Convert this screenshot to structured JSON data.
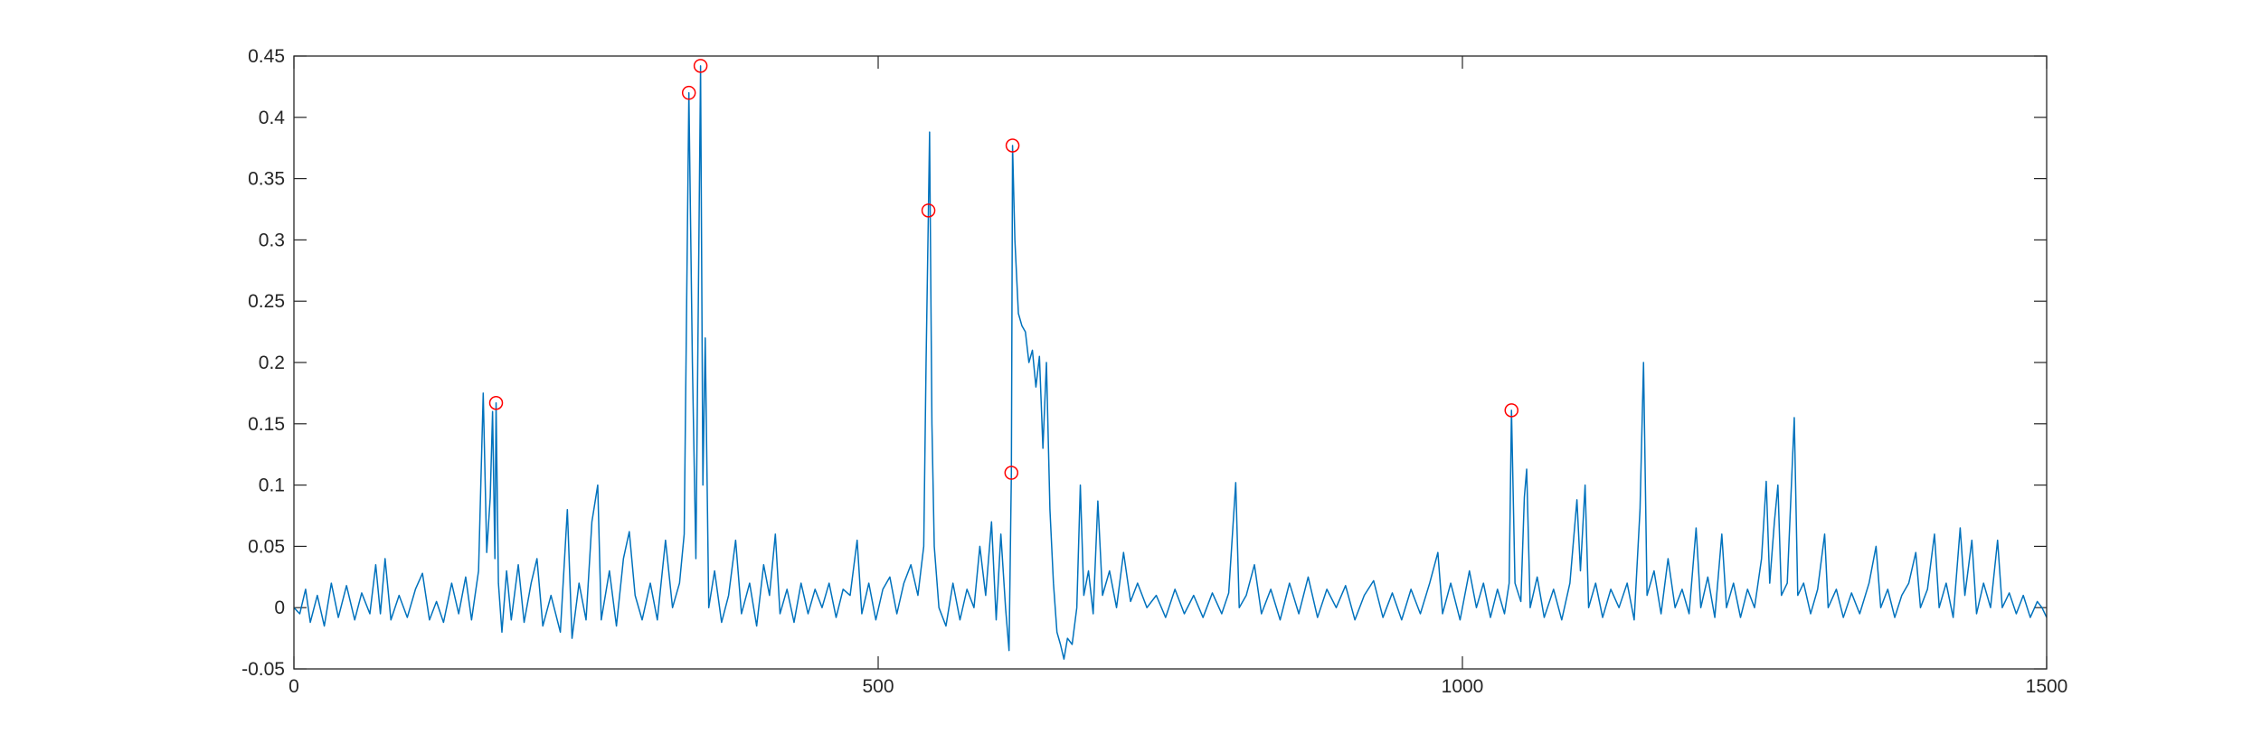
{
  "chart_data": {
    "type": "line",
    "xlim": [
      0,
      1500
    ],
    "ylim": [
      -0.05,
      0.45
    ],
    "xticks": [
      0,
      500,
      1000,
      1500
    ],
    "yticks": [
      -0.05,
      0,
      0.05,
      0.1,
      0.15,
      0.2,
      0.25,
      0.3,
      0.35,
      0.4,
      0.45
    ],
    "grid": false,
    "series": [
      {
        "color": "#0072bd",
        "x": [
          0,
          5,
          10,
          14,
          20,
          26,
          32,
          38,
          45,
          52,
          58,
          65,
          70,
          74,
          78,
          83,
          90,
          97,
          104,
          110,
          116,
          122,
          128,
          135,
          141,
          147,
          152,
          158,
          162,
          165,
          168,
          170,
          172,
          173,
          175,
          178,
          182,
          186,
          192,
          197,
          203,
          208,
          213,
          220,
          228,
          234,
          238,
          244,
          250,
          255,
          260,
          263,
          270,
          276,
          282,
          287,
          292,
          298,
          305,
          311,
          318,
          324,
          330,
          334,
          338,
          341,
          344,
          348,
          350,
          352,
          355,
          360,
          366,
          372,
          378,
          383,
          390,
          396,
          402,
          407,
          412,
          416,
          422,
          428,
          434,
          440,
          446,
          452,
          458,
          464,
          470,
          476,
          482,
          486,
          492,
          498,
          504,
          510,
          516,
          522,
          528,
          534,
          539,
          541,
          543,
          544,
          546,
          548,
          552,
          558,
          564,
          570,
          576,
          582,
          587,
          592,
          597,
          601,
          605,
          609,
          612,
          614,
          615,
          617,
          620,
          623,
          626,
          629,
          632,
          635,
          638,
          641,
          644,
          647,
          650,
          653,
          656,
          659,
          662,
          666,
          670,
          673,
          676,
          680,
          684,
          688,
          692,
          698,
          704,
          710,
          716,
          722,
          730,
          738,
          746,
          754,
          762,
          770,
          778,
          786,
          794,
          800,
          806,
          809,
          815,
          822,
          828,
          836,
          844,
          852,
          860,
          868,
          876,
          884,
          892,
          900,
          908,
          916,
          924,
          932,
          940,
          948,
          956,
          964,
          972,
          979,
          983,
          990,
          998,
          1006,
          1012,
          1018,
          1024,
          1030,
          1036,
          1040,
          1042,
          1045,
          1050,
          1053,
          1055,
          1058,
          1064,
          1070,
          1078,
          1085,
          1092,
          1098,
          1101,
          1105,
          1108,
          1114,
          1120,
          1127,
          1134,
          1141,
          1147,
          1152,
          1155,
          1158,
          1164,
          1170,
          1176,
          1182,
          1188,
          1194,
          1200,
          1204,
          1210,
          1216,
          1222,
          1226,
          1232,
          1238,
          1244,
          1250,
          1256,
          1260,
          1263,
          1267,
          1270,
          1273,
          1278,
          1284,
          1287,
          1292,
          1298,
          1304,
          1310,
          1313,
          1320,
          1326,
          1333,
          1340,
          1348,
          1354,
          1358,
          1364,
          1370,
          1376,
          1382,
          1388,
          1392,
          1398,
          1404,
          1408,
          1414,
          1420,
          1426,
          1430,
          1436,
          1440,
          1446,
          1452,
          1458,
          1462,
          1468,
          1474,
          1480,
          1486,
          1492,
          1496,
          1500
        ],
        "values": [
          0,
          -0.005,
          0.015,
          -0.012,
          0.01,
          -0.015,
          0.02,
          -0.008,
          0.018,
          -0.01,
          0.012,
          -0.005,
          0.035,
          -0.005,
          0.04,
          -0.01,
          0.01,
          -0.008,
          0.015,
          0.028,
          -0.01,
          0.005,
          -0.012,
          0.02,
          -0.005,
          0.025,
          -0.01,
          0.03,
          0.175,
          0.045,
          0.09,
          0.16,
          0.04,
          0.167,
          0.02,
          -0.02,
          0.03,
          -0.01,
          0.035,
          -0.012,
          0.02,
          0.04,
          -0.015,
          0.01,
          -0.02,
          0.08,
          -0.025,
          0.02,
          -0.01,
          0.07,
          0.1,
          -0.01,
          0.03,
          -0.015,
          0.04,
          0.062,
          0.01,
          -0.01,
          0.02,
          -0.01,
          0.055,
          0,
          0.02,
          0.06,
          0.42,
          0.2,
          0.04,
          0.442,
          0.1,
          0.22,
          0,
          0.03,
          -0.012,
          0.01,
          0.055,
          -0.005,
          0.02,
          -0.015,
          0.035,
          0.01,
          0.06,
          -0.005,
          0.015,
          -0.012,
          0.02,
          -0.005,
          0.015,
          0,
          0.02,
          -0.008,
          0.015,
          0.01,
          0.055,
          -0.005,
          0.02,
          -0.01,
          0.015,
          0.025,
          -0.005,
          0.02,
          0.035,
          0.01,
          0.05,
          0.2,
          0.324,
          0.388,
          0.15,
          0.05,
          0,
          -0.015,
          0.02,
          -0.01,
          0.015,
          0,
          0.05,
          0.01,
          0.07,
          -0.01,
          0.06,
          0,
          -0.035,
          0.11,
          0.377,
          0.3,
          0.24,
          0.23,
          0.225,
          0.2,
          0.21,
          0.18,
          0.205,
          0.13,
          0.2,
          0.08,
          0.02,
          -0.02,
          -0.03,
          -0.042,
          -0.025,
          -0.03,
          0,
          0.1,
          0.01,
          0.03,
          -0.005,
          0.087,
          0.01,
          0.03,
          0,
          0.045,
          0.005,
          0.02,
          0,
          0.01,
          -0.008,
          0.015,
          -0.005,
          0.01,
          -0.008,
          0.012,
          -0.005,
          0.012,
          0.102,
          0,
          0.01,
          0.035,
          -0.005,
          0.015,
          -0.01,
          0.02,
          -0.005,
          0.025,
          -0.008,
          0.015,
          0,
          0.018,
          -0.01,
          0.01,
          0.022,
          -0.008,
          0.012,
          -0.01,
          0.015,
          -0.005,
          0.02,
          0.045,
          -0.005,
          0.02,
          -0.01,
          0.03,
          0,
          0.02,
          -0.008,
          0.015,
          -0.005,
          0.02,
          0.161,
          0.02,
          0.005,
          0.09,
          0.113,
          0,
          0.025,
          -0.008,
          0.015,
          -0.01,
          0.02,
          0.088,
          0.03,
          0.1,
          0,
          0.02,
          -0.008,
          0.015,
          0,
          0.02,
          -0.01,
          0.08,
          0.2,
          0.01,
          0.03,
          -0.005,
          0.04,
          0,
          0.015,
          -0.005,
          0.065,
          0,
          0.025,
          -0.008,
          0.06,
          0,
          0.02,
          -0.008,
          0.015,
          0,
          0.04,
          0.103,
          0.02,
          0.07,
          0.1,
          0.01,
          0.02,
          0.155,
          0.01,
          0.02,
          -0.005,
          0.015,
          0.06,
          0,
          0.015,
          -0.008,
          0.012,
          -0.005,
          0.02,
          0.05,
          0,
          0.015,
          -0.008,
          0.01,
          0.02,
          0.045,
          0,
          0.015,
          0.06,
          0,
          0.02,
          -0.008,
          0.065,
          0.01,
          0.055,
          -0.005,
          0.02,
          0,
          0.055,
          0,
          0.012,
          -0.005,
          0.01,
          -0.008,
          0.005,
          0,
          -0.008
        ]
      },
      {
        "color": "#ff0000",
        "marker": "circle",
        "x": [
          173,
          338,
          348,
          543,
          615,
          614,
          1042
        ],
        "values": [
          0.167,
          0.42,
          0.442,
          0.324,
          0.377,
          0.11,
          0.161
        ]
      }
    ]
  }
}
